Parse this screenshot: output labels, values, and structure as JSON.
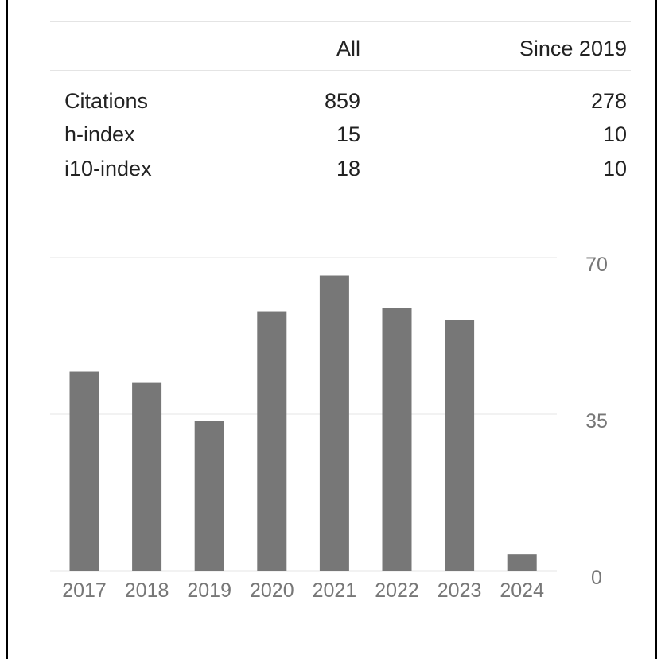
{
  "stats": {
    "headers": {
      "all": "All",
      "since": "Since 2019"
    },
    "rows": [
      {
        "label": "Citations",
        "all": "859",
        "since": "278"
      },
      {
        "label": "h-index",
        "all": "15",
        "since": "10"
      },
      {
        "label": "i10-index",
        "all": "18",
        "since": "10"
      }
    ]
  },
  "chart_data": {
    "type": "bar",
    "categories": [
      "2017",
      "2018",
      "2019",
      "2020",
      "2021",
      "2022",
      "2023",
      "2024"
    ],
    "values": [
      44.5,
      42,
      33.5,
      58,
      66,
      58.7,
      56,
      3.7
    ],
    "ylim": [
      0,
      70
    ],
    "yticks": [
      "0",
      "35",
      "70"
    ],
    "grid": true,
    "bar_color": "#777777",
    "grid_color": "#eeeeee"
  }
}
